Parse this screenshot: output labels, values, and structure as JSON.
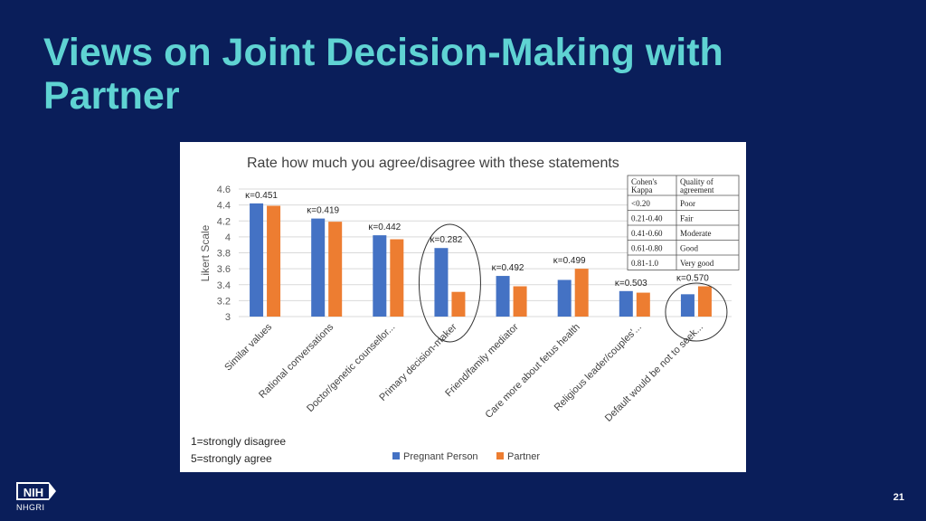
{
  "slide": {
    "title": "Views on Joint Decision-Making with Partner",
    "page_number": "21",
    "logo": "NIH",
    "org": "NHGRI"
  },
  "colors": {
    "background": "#0a1e5a",
    "title": "#5fd3d3",
    "series_1": "#4472c4",
    "series_2": "#ed7d31"
  },
  "chart_data": {
    "type": "bar",
    "title": "Rate how much you agree/disagree with these statements",
    "ylabel": "Likert Scale",
    "xlabel": "",
    "ylim": [
      3,
      4.6
    ],
    "yticks": [
      "4.6",
      "4.4",
      "4.2",
      "4",
      "3.8",
      "3.6",
      "3.4",
      "3.2",
      "3"
    ],
    "ytick_values": [
      4.6,
      4.4,
      4.2,
      4.0,
      3.8,
      3.6,
      3.4,
      3.2,
      3.0
    ],
    "grid": true,
    "legend_position": "bottom",
    "categories": [
      "Similar values",
      "Rational conversations",
      "Doctor/genetic counsellor...",
      "Primary decision-maker",
      "Friend/family mediator",
      "Care more about fetus health",
      "Religious leader/couples'...",
      "Default would be not to seek..."
    ],
    "series": [
      {
        "name": "Pregnant Person",
        "values": [
          4.42,
          4.23,
          4.02,
          3.86,
          3.51,
          3.46,
          3.32,
          3.28
        ]
      },
      {
        "name": "Partner",
        "values": [
          4.39,
          4.19,
          3.97,
          3.31,
          3.38,
          3.6,
          3.3,
          3.38
        ]
      }
    ],
    "kappa_labels": [
      "κ=0.451",
      "κ=0.419",
      "κ=0.442",
      "κ=0.282",
      "κ=0.492",
      "κ=0.499",
      "κ=0.503",
      "κ=0.570"
    ],
    "kappa_table": {
      "headers": [
        "Cohen's Kappa",
        "Quality of agreement"
      ],
      "rows": [
        [
          "<0.20",
          "Poor"
        ],
        [
          "0.21-0.40",
          "Fair"
        ],
        [
          "0.41-0.60",
          "Moderate"
        ],
        [
          "0.61-0.80",
          "Good"
        ],
        [
          "0.81-1.0",
          "Very good"
        ]
      ]
    },
    "scale_notes": [
      "1=strongly disagree",
      "5=strongly agree"
    ],
    "highlighted_categories": [
      "Primary decision-maker",
      "Default would be not to seek..."
    ]
  }
}
